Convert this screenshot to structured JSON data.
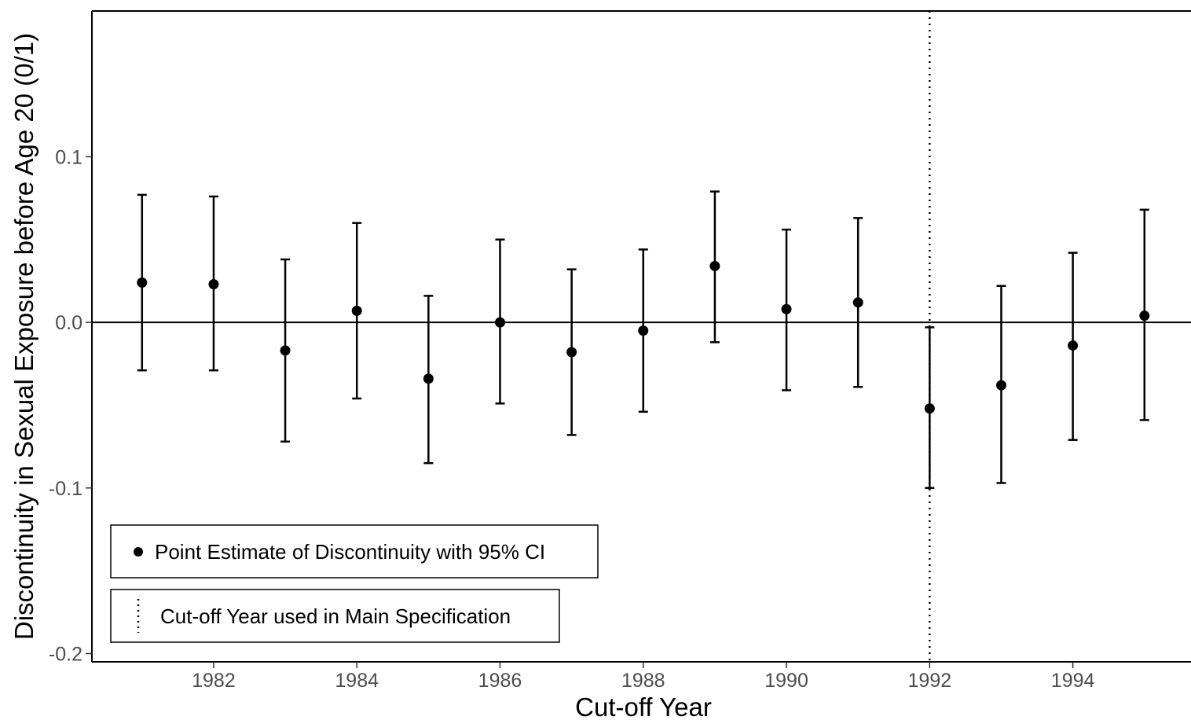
{
  "chart_data": {
    "type": "scatter",
    "xlabel": "Cut-off Year",
    "ylabel": "Discontinuity in Sexual Exposure before Age 20 (0/1)",
    "xlim": [
      1980.3,
      1995.65
    ],
    "ylim": [
      -0.205,
      0.188
    ],
    "x_ticks": [
      1982,
      1984,
      1986,
      1988,
      1990,
      1992,
      1994
    ],
    "y_ticks": [
      0.1,
      0.0,
      -0.1,
      -0.2
    ],
    "y_tick_labels": [
      "0.1",
      "0.0",
      "-0.1",
      "-0.2"
    ],
    "zero_line": 0.0,
    "main_cutoff_year": 1992,
    "grid": false,
    "legend_position": "bottom-left",
    "legend": [
      {
        "marker": "point",
        "label": "Point Estimate of Discontinuity with 95% CI"
      },
      {
        "marker": "dotted-line",
        "label": "Cut-off Year used in Main Specification"
      }
    ],
    "points": [
      {
        "x": 1981,
        "y": 0.024,
        "lower": -0.029,
        "upper": 0.077
      },
      {
        "x": 1982,
        "y": 0.023,
        "lower": -0.029,
        "upper": 0.076
      },
      {
        "x": 1983,
        "y": -0.017,
        "lower": -0.072,
        "upper": 0.038
      },
      {
        "x": 1984,
        "y": 0.007,
        "lower": -0.046,
        "upper": 0.06
      },
      {
        "x": 1985,
        "y": -0.034,
        "lower": -0.085,
        "upper": 0.016
      },
      {
        "x": 1986,
        "y": 0.0,
        "lower": -0.049,
        "upper": 0.05
      },
      {
        "x": 1987,
        "y": -0.018,
        "lower": -0.068,
        "upper": 0.032
      },
      {
        "x": 1988,
        "y": -0.005,
        "lower": -0.054,
        "upper": 0.044
      },
      {
        "x": 1989,
        "y": 0.034,
        "lower": -0.012,
        "upper": 0.079
      },
      {
        "x": 1990,
        "y": 0.008,
        "lower": -0.041,
        "upper": 0.056
      },
      {
        "x": 1991,
        "y": 0.012,
        "lower": -0.039,
        "upper": 0.063
      },
      {
        "x": 1992,
        "y": -0.052,
        "lower": -0.1,
        "upper": -0.003
      },
      {
        "x": 1993,
        "y": -0.038,
        "lower": -0.097,
        "upper": 0.022
      },
      {
        "x": 1994,
        "y": -0.014,
        "lower": -0.071,
        "upper": 0.042
      },
      {
        "x": 1995,
        "y": 0.004,
        "lower": -0.059,
        "upper": 0.068
      }
    ]
  }
}
